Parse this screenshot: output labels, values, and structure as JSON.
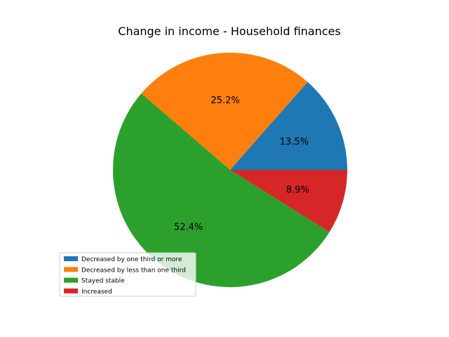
{
  "chart_data": {
    "type": "pie",
    "title": "Change in income - Household finances",
    "categories": [
      "Decreased by one third or more",
      "Decreased by less than one third",
      "Stayed stable",
      "Increased"
    ],
    "values": [
      13.5,
      25.2,
      52.4,
      8.9
    ],
    "value_labels": [
      "13.5%",
      "25.2%",
      "52.4%",
      "8.9%"
    ],
    "colors": [
      "#1f77b4",
      "#ff7f0e",
      "#2ca02c",
      "#d62728"
    ],
    "start_angle_deg": 0,
    "direction": "counterclockwise",
    "legend_placement": "lower-left"
  }
}
